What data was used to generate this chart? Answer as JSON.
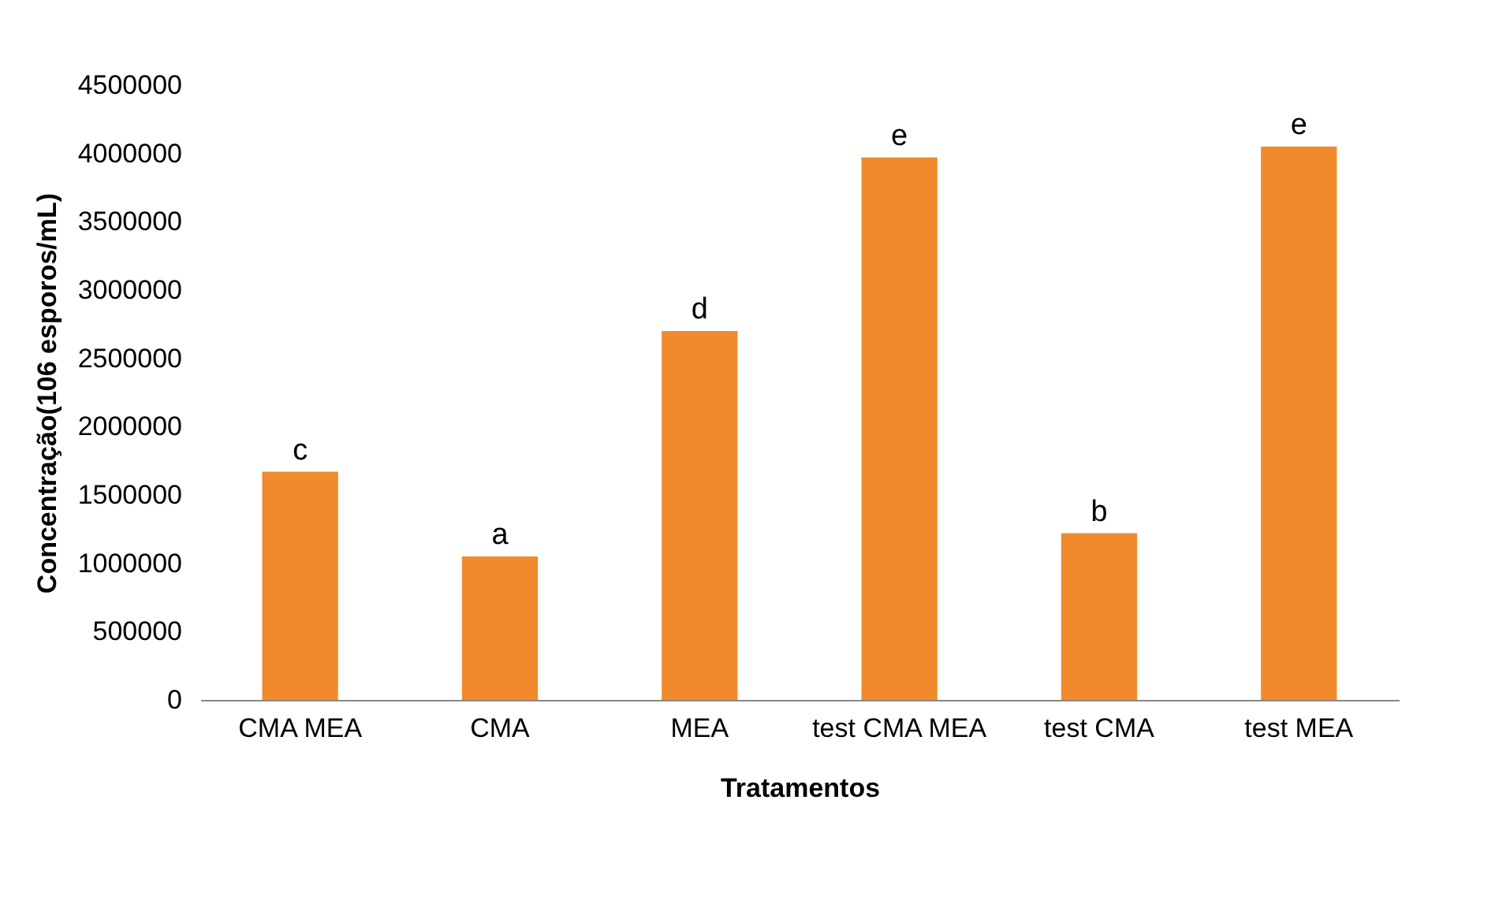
{
  "chart_data": {
    "type": "bar",
    "xlabel": "Tratamentos",
    "ylabel": "Concentração(106 esporos/mL)",
    "categories": [
      "CMA MEA",
      "CMA",
      "MEA",
      "test CMA MEA",
      "test CMA",
      "test MEA"
    ],
    "values": [
      1670000,
      1050000,
      2700000,
      3970000,
      1220000,
      4050000
    ],
    "color": "#f08a2c",
    "ylim": [
      0,
      4500000
    ],
    "yticks": [
      0,
      500000,
      1000000,
      1500000,
      2000000,
      2500000,
      3000000,
      3500000,
      4000000,
      4500000
    ],
    "grid": false,
    "annotations": [
      {
        "text": "c",
        "x": "CMA MEA",
        "y": 1670000
      },
      {
        "text": "a",
        "x": "CMA",
        "y": 1050000
      },
      {
        "text": "d",
        "x": "MEA",
        "y": 2700000
      },
      {
        "text": "e",
        "x": "test CMA MEA",
        "y": 3970000
      },
      {
        "text": "b",
        "x": "test CMA",
        "y": 1220000
      },
      {
        "text": "e",
        "x": "test MEA",
        "y": 4050000
      }
    ]
  }
}
